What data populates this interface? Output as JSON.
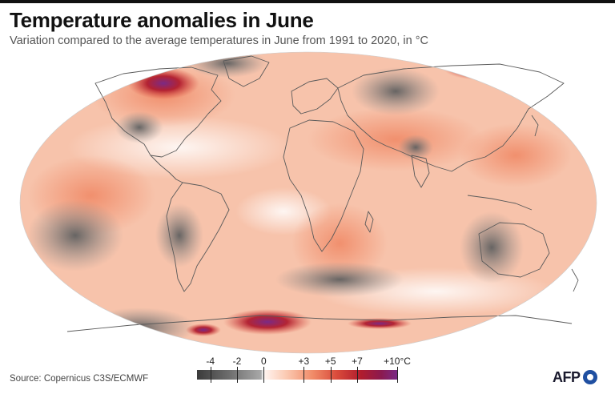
{
  "header": {
    "title": "Temperature anomalies in June",
    "subtitle": "Variation compared to the average temperatures in June from 1991 to 2020, in °C"
  },
  "legend": {
    "labels": [
      "-4",
      "-2",
      "0",
      "+3",
      "+5",
      "+7",
      "+10°C"
    ],
    "values": [
      -4,
      -2,
      0,
      3,
      5,
      7,
      10
    ],
    "range": [
      -5,
      10
    ],
    "colors": {
      "cold_dark": "#3b3b3b",
      "cold_mid": "#a8a8a8",
      "neutral": "#f4f4f4",
      "warm_light": "#fbc8b0",
      "warm_mid": "#f08a67",
      "warm_strong": "#d94a3b",
      "hot": "#b01c2e",
      "extreme": "#7a2a86"
    }
  },
  "footer": {
    "source": "Source: Copernicus C3S/ECMWF",
    "logo_text": "AFP"
  },
  "map": {
    "projection": "robinson",
    "ocean_base_color": "#f7c3ab",
    "coastline_color": "#5a5a5a"
  }
}
